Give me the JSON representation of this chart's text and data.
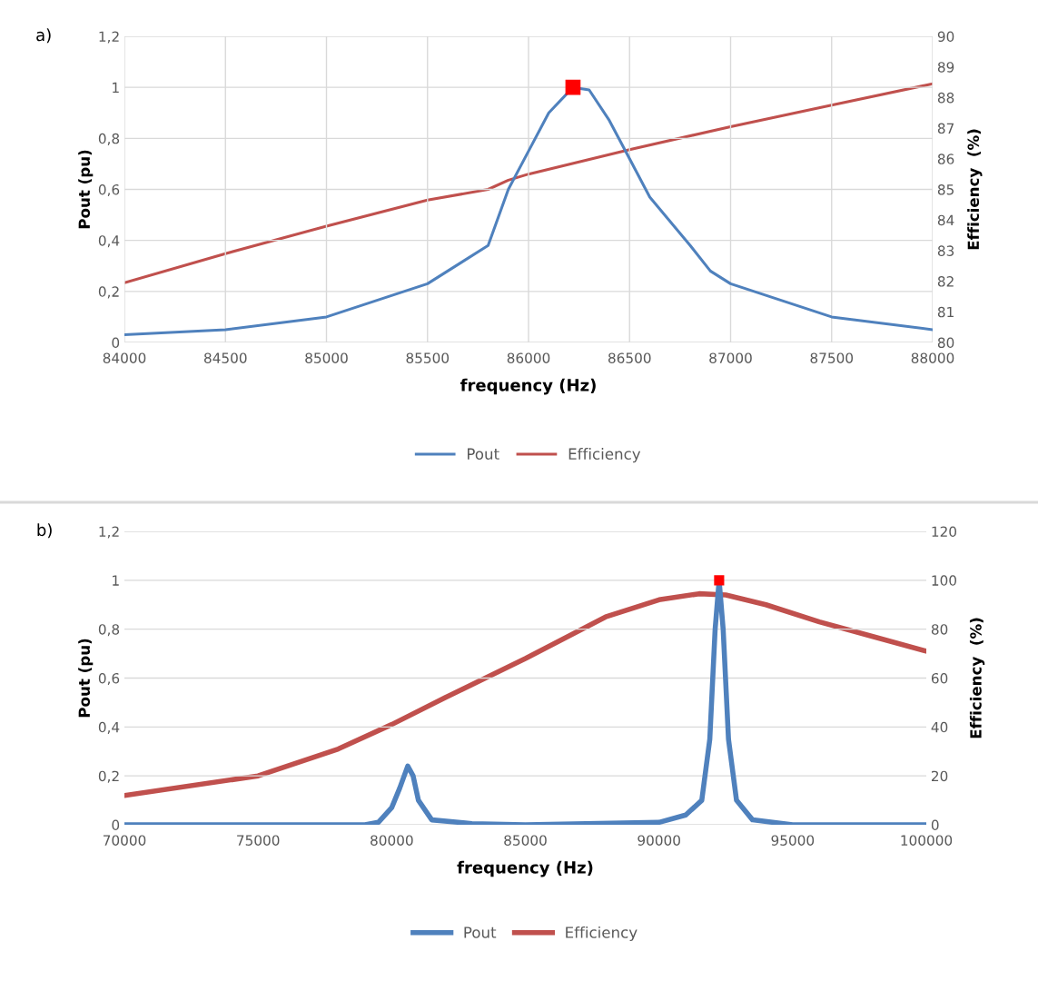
{
  "chart_data": [
    {
      "type": "line",
      "annotations": [
        "a)"
      ],
      "xlabel": "frequency (Hz)",
      "ylabel": "Pout (pu)",
      "y2label": "Efficiency  (%)",
      "xlim": [
        84000,
        88000
      ],
      "xticks": [
        84000,
        84500,
        85000,
        85500,
        86000,
        86500,
        87000,
        87500,
        88000
      ],
      "ylim": [
        0,
        1.2
      ],
      "yticks": [
        0,
        {
          "value": 0.2,
          "label": "0,2"
        },
        {
          "value": 0.4,
          "label": "0,4"
        },
        {
          "value": 0.6,
          "label": "0,6"
        },
        {
          "value": 0.8,
          "label": "0,8"
        },
        1,
        {
          "value": 1.2,
          "label": "1,2"
        }
      ],
      "y2lim": [
        80,
        90
      ],
      "y2ticks": [
        80,
        81,
        82,
        83,
        84,
        85,
        86,
        87,
        88,
        89,
        90
      ],
      "grid": true,
      "legend": "bottom",
      "series": [
        {
          "name": "Pout",
          "color": "#4f81bd",
          "x": [
            84000,
            84500,
            85000,
            85500,
            85800,
            85900,
            86000,
            86100,
            86220,
            86300,
            86400,
            86500,
            86600,
            86800,
            86900,
            87000,
            87500,
            88000
          ],
          "values": [
            0.03,
            0.05,
            0.1,
            0.23,
            0.38,
            0.6,
            0.75,
            0.9,
            1.0,
            0.99,
            0.87,
            0.72,
            0.57,
            0.38,
            0.28,
            0.23,
            0.1,
            0.05
          ]
        },
        {
          "name": "Efficiency",
          "color": "#c0504d",
          "axis": "y2",
          "x": [
            84000,
            84500,
            85000,
            85500,
            85800,
            85900,
            86000,
            86500,
            87000,
            87500,
            88000
          ],
          "values": [
            81.95,
            82.9,
            83.8,
            84.65,
            85.0,
            85.3,
            85.5,
            86.3,
            87.05,
            87.75,
            88.45
          ]
        },
        {
          "type": "scatter",
          "color": "#ff0000",
          "marker": "square",
          "x": [
            86220
          ],
          "values": [
            1.0
          ]
        }
      ]
    },
    {
      "type": "line",
      "annotations": [
        "b)"
      ],
      "xlabel": "frequency (Hz)",
      "ylabel": "Pout (pu)",
      "y2label": "Efficiency  (%)",
      "xlim": [
        70000,
        100000
      ],
      "xticks": [
        70000,
        75000,
        80000,
        85000,
        90000,
        95000,
        100000
      ],
      "ylim": [
        0,
        1.2
      ],
      "yticks": [
        0,
        {
          "value": 0.2,
          "label": "0,2"
        },
        {
          "value": 0.4,
          "label": "0,4"
        },
        {
          "value": 0.6,
          "label": "0,6"
        },
        {
          "value": 0.8,
          "label": "0,8"
        },
        1,
        {
          "value": 1.2,
          "label": "1,2"
        }
      ],
      "y2lim": [
        0,
        120
      ],
      "y2ticks": [
        0,
        20,
        40,
        60,
        80,
        100,
        120
      ],
      "grid": "y",
      "legend": "bottom",
      "series": [
        {
          "name": "Pout",
          "color": "#4f81bd",
          "x": [
            70000,
            79000,
            79500,
            80000,
            80300,
            80600,
            80800,
            81000,
            81500,
            83000,
            85000,
            90000,
            91000,
            91600,
            91900,
            92100,
            92250,
            92400,
            92600,
            92900,
            93500,
            95000,
            100000
          ],
          "values": [
            0,
            0,
            0.01,
            0.07,
            0.15,
            0.24,
            0.2,
            0.1,
            0.02,
            0.005,
            0,
            0.01,
            0.04,
            0.1,
            0.35,
            0.8,
            1.0,
            0.8,
            0.35,
            0.1,
            0.02,
            0,
            0
          ]
        },
        {
          "name": "Efficiency",
          "color": "#c0504d",
          "axis": "y2",
          "x": [
            70000,
            75000,
            78000,
            80000,
            82000,
            85000,
            88000,
            90000,
            91500,
            92500,
            94000,
            96000,
            98000,
            100000
          ],
          "values": [
            12,
            20,
            31,
            41,
            52,
            68,
            85,
            92,
            94.5,
            94,
            90,
            83,
            77,
            71
          ]
        },
        {
          "type": "scatter",
          "color": "#ff0000",
          "marker": "square",
          "x": [
            92250
          ],
          "values": [
            1.0
          ]
        }
      ]
    }
  ]
}
